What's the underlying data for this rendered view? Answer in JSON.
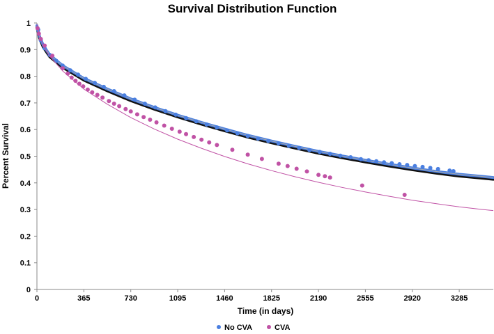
{
  "chart_data": {
    "type": "scatter",
    "title": "Survival Distribution Function",
    "xlabel": "Time (in days)",
    "ylabel": "Percent Survival",
    "xlim": [
      0,
      3550
    ],
    "ylim": [
      0,
      1
    ],
    "x_ticks": [
      0,
      365,
      730,
      1095,
      1460,
      1825,
      2190,
      2555,
      2920,
      3285
    ],
    "y_ticks": [
      0,
      0.1,
      0.2,
      0.3,
      0.4,
      0.5,
      0.6,
      0.7,
      0.8,
      0.9,
      1
    ],
    "y_tick_labels": [
      "0",
      "0.1",
      "0.2",
      "0.3",
      "0.4",
      "0.5",
      "0.6",
      "0.7",
      "0.8",
      "0.9",
      "1"
    ],
    "grid": false,
    "legend_position": "bottom",
    "series": [
      {
        "name": "No CVA",
        "color": "#4a7fe0",
        "trend_color": "#a9a9a9",
        "shadow_color": "#111111",
        "trend_x": [
          0,
          20,
          50,
          100,
          200,
          365,
          548,
          730,
          913,
          1095,
          1278,
          1460,
          1643,
          1825,
          2008,
          2190,
          2373,
          2555,
          2738,
          2920,
          3103,
          3285,
          3468,
          3550
        ],
        "trend_y": [
          0.99,
          0.95,
          0.915,
          0.88,
          0.84,
          0.792,
          0.752,
          0.715,
          0.683,
          0.654,
          0.627,
          0.602,
          0.578,
          0.557,
          0.537,
          0.518,
          0.501,
          0.485,
          0.47,
          0.456,
          0.443,
          0.432,
          0.424,
          0.42
        ],
        "points_x": [
          10,
          30,
          60,
          100,
          150,
          200,
          260,
          320,
          380,
          450,
          520,
          600,
          680,
          760,
          840,
          920,
          1000,
          1080,
          1160,
          1240,
          1320,
          1400,
          1480,
          1560,
          1640,
          1720,
          1800,
          1880,
          1960,
          2040,
          2120,
          2200,
          2280,
          2360,
          2440,
          2520,
          2580,
          2640,
          2700,
          2760,
          2820,
          2880,
          2940,
          3000,
          3060,
          3120,
          3210,
          3240
        ],
        "points_y": [
          0.975,
          0.935,
          0.905,
          0.88,
          0.858,
          0.84,
          0.822,
          0.806,
          0.79,
          0.775,
          0.76,
          0.744,
          0.728,
          0.712,
          0.697,
          0.683,
          0.669,
          0.656,
          0.643,
          0.631,
          0.619,
          0.608,
          0.597,
          0.586,
          0.576,
          0.566,
          0.557,
          0.548,
          0.539,
          0.531,
          0.523,
          0.516,
          0.509,
          0.502,
          0.496,
          0.489,
          0.485,
          0.481,
          0.477,
          0.474,
          0.47,
          0.467,
          0.463,
          0.46,
          0.456,
          0.452,
          0.446,
          0.444
        ]
      },
      {
        "name": "CVA",
        "color": "#c052a5",
        "trend_color": "#c052a5",
        "trend_x": [
          0,
          20,
          50,
          100,
          200,
          365,
          548,
          730,
          913,
          1095,
          1278,
          1460,
          1643,
          1825,
          2008,
          2190,
          2373,
          2555,
          2738,
          2920,
          3103,
          3285,
          3468,
          3550
        ],
        "trend_y": [
          0.995,
          0.955,
          0.915,
          0.875,
          0.82,
          0.752,
          0.695,
          0.645,
          0.602,
          0.564,
          0.53,
          0.499,
          0.471,
          0.446,
          0.423,
          0.402,
          0.383,
          0.366,
          0.35,
          0.335,
          0.322,
          0.31,
          0.3,
          0.296
        ],
        "points_x": [
          5,
          15,
          30,
          60,
          120,
          200,
          240,
          270,
          300,
          330,
          360,
          395,
          430,
          470,
          510,
          560,
          600,
          640,
          690,
          730,
          780,
          830,
          880,
          930,
          990,
          1050,
          1110,
          1160,
          1220,
          1280,
          1340,
          1400,
          1520,
          1640,
          1750,
          1880,
          1950,
          2020,
          2100,
          2190,
          2240,
          2280,
          2530,
          2860
        ],
        "points_y": [
          0.98,
          0.96,
          0.94,
          0.915,
          0.877,
          0.83,
          0.81,
          0.795,
          0.783,
          0.772,
          0.762,
          0.75,
          0.74,
          0.73,
          0.72,
          0.707,
          0.697,
          0.688,
          0.677,
          0.668,
          0.657,
          0.647,
          0.637,
          0.627,
          0.615,
          0.603,
          0.592,
          0.583,
          0.572,
          0.562,
          0.552,
          0.542,
          0.524,
          0.506,
          0.49,
          0.472,
          0.463,
          0.453,
          0.443,
          0.43,
          0.425,
          0.42,
          0.39,
          0.355
        ]
      }
    ]
  }
}
